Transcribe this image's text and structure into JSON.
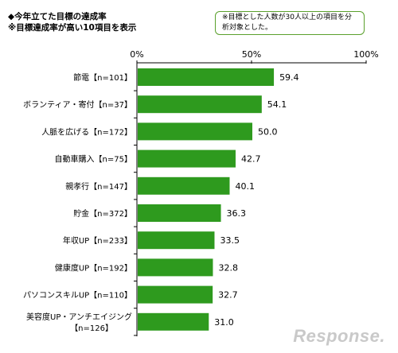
{
  "title": {
    "line1": "◆今年立てた目標の達成率",
    "line2": "※目標達成率が高い10項目を表示"
  },
  "note": "※目標とした人数が30人以上の項目を分析対象とした。",
  "watermark": "Response.",
  "colors": {
    "bar": "#2e9a1e",
    "axis": "#000000"
  },
  "chart_data": {
    "type": "bar",
    "orientation": "horizontal",
    "categories": [
      "節電【n=101】",
      "ボランティア・寄付【n=37】",
      "人脈を広げる【n=172】",
      "自動車購入【n=75】",
      "親孝行【n=147】",
      "貯金【n=372】",
      "年収UP【n=233】",
      "健康度UP【n=192】",
      "パソコンスキルUP【n=110】",
      "美容度UP・アンチエイジング【n=126】"
    ],
    "values": [
      59.4,
      54.1,
      50.0,
      42.7,
      40.1,
      36.3,
      33.5,
      32.8,
      32.7,
      31.0
    ],
    "value_labels": [
      "59.4",
      "54.1",
      "50.0",
      "42.7",
      "40.1",
      "36.3",
      "33.5",
      "32.8",
      "32.7",
      "31.0"
    ],
    "xlim": [
      0,
      100
    ],
    "ticks": [
      "0%",
      "50%",
      "100%"
    ],
    "tick_values": [
      0,
      50,
      100
    ]
  }
}
